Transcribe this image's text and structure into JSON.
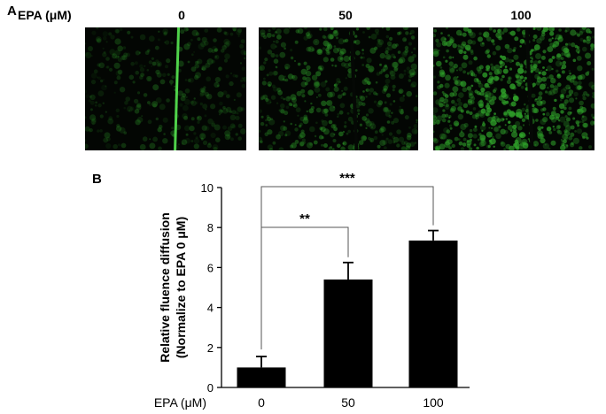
{
  "panel_a": {
    "letter": "A",
    "row_label": "EPA (μM)",
    "images": [
      {
        "label": "0",
        "intensity": 0.35,
        "vessel": "green"
      },
      {
        "label": "50",
        "intensity": 0.55,
        "vessel": "dark"
      },
      {
        "label": "100",
        "intensity": 0.9,
        "vessel": "dark"
      }
    ],
    "fluorescence_color": "#2fa12a"
  },
  "panel_b": {
    "letter": "B",
    "x_axis_label": "EPA (μM)",
    "significance": [
      {
        "from": 0,
        "to": 1,
        "label": "**"
      },
      {
        "from": 0,
        "to": 2,
        "label": "***"
      }
    ]
  },
  "chart_data": {
    "type": "bar",
    "categories": [
      "0",
      "50",
      "100"
    ],
    "values": [
      1.0,
      5.4,
      7.35
    ],
    "errors": [
      0.55,
      0.85,
      0.5
    ],
    "ylabel_line1": "Relative fluence diffusion",
    "ylabel_line2": "(Normalize to EPA 0 μM)",
    "xlabel": "EPA (μM)",
    "ylim": [
      0,
      10
    ],
    "yticks": [
      0,
      2,
      4,
      6,
      8,
      10
    ],
    "bar_color": "#000000",
    "grid": false
  }
}
